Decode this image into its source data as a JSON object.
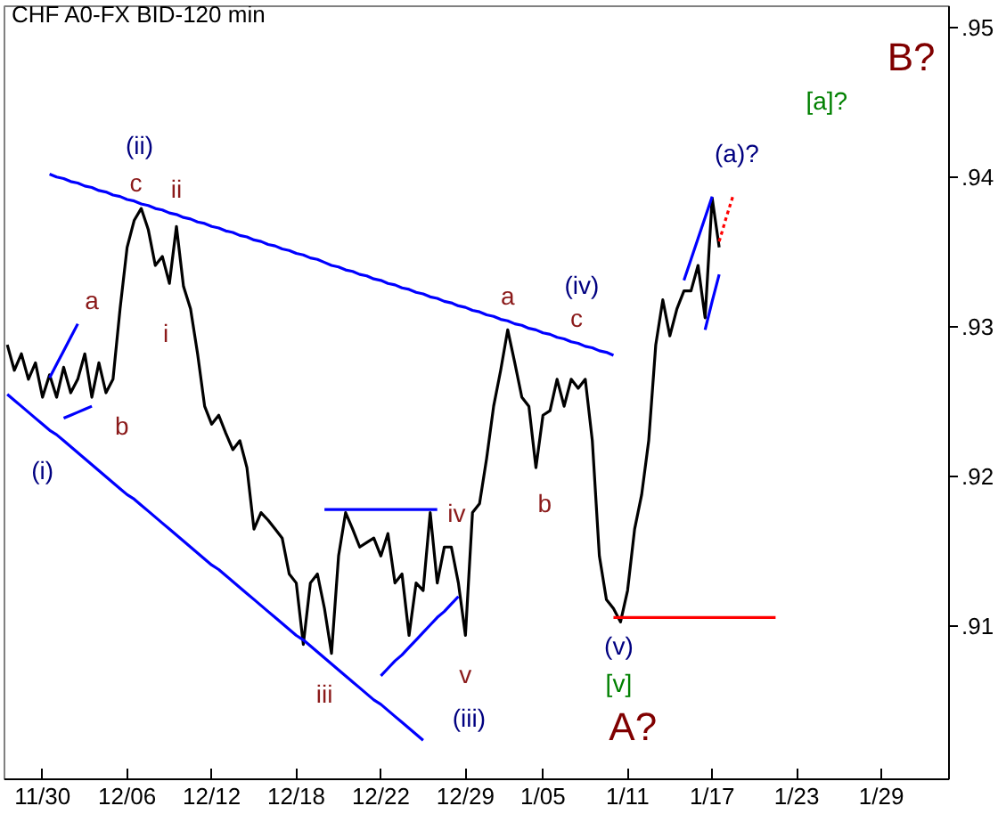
{
  "chart_data": {
    "type": "line",
    "title": "CHF A0-FX BID-120 min",
    "categories": [
      null,
      null,
      null,
      null,
      null,
      "11/30",
      null,
      null,
      null,
      null,
      null,
      null,
      null,
      null,
      null,
      null,
      null,
      "12/06",
      null,
      null,
      null,
      null,
      null,
      null,
      null,
      null,
      null,
      null,
      null,
      "12/12",
      null,
      null,
      null,
      null,
      null,
      null,
      null,
      null,
      null,
      null,
      null,
      "12/18",
      null,
      null,
      null,
      null,
      null,
      null,
      null,
      null,
      null,
      null,
      null,
      "12/22",
      null,
      null,
      null,
      null,
      null,
      null,
      null,
      null,
      null,
      null,
      null,
      "12/29",
      null,
      null,
      null,
      null,
      null,
      null,
      null,
      null,
      null,
      null,
      "1/05",
      null,
      null,
      null,
      null,
      null,
      null,
      null,
      null,
      null,
      null,
      null,
      "1/11",
      null,
      null,
      null,
      null,
      null,
      null,
      null,
      null,
      null,
      null,
      null,
      "1/17",
      null,
      null,
      null,
      null,
      null,
      null,
      null,
      null,
      null,
      null,
      null,
      "1/23",
      null,
      null,
      null,
      null,
      null,
      null,
      null,
      null,
      null,
      null,
      null,
      "1/29",
      null,
      null,
      null,
      null,
      null,
      null,
      null,
      null,
      null
    ],
    "ylim": [
      0.8998,
      0.9514
    ],
    "yticks": [
      {
        "value": 0.91,
        "label": ".91"
      },
      {
        "value": 0.92,
        "label": ".92"
      },
      {
        "value": 0.93,
        "label": ".93"
      },
      {
        "value": 0.94,
        "label": ".94"
      },
      {
        "value": 0.95,
        "label": ".95"
      }
    ],
    "grid": false,
    "marker": "none",
    "series": [
      {
        "color": "#000000",
        "line_style": "solid",
        "values": [
          0.9288,
          0.9271,
          0.9282,
          0.9265,
          0.9276,
          0.9253,
          0.9268,
          0.9253,
          0.9273,
          0.9256,
          0.9265,
          0.9282,
          0.9253,
          0.9276,
          0.9256,
          0.9265,
          0.9312,
          0.9353,
          0.9371,
          0.9379,
          0.9365,
          0.9341,
          0.9347,
          0.9329,
          0.9367,
          0.9327,
          0.9312,
          0.9282,
          0.9247,
          0.9235,
          0.9241,
          0.9229,
          0.9218,
          0.9224,
          0.9206,
          0.9165,
          0.9176,
          0.9171,
          0.9165,
          0.9159,
          0.9135,
          0.9129,
          0.9088,
          0.9129,
          0.9135,
          0.9112,
          0.9082,
          0.9147,
          0.9176,
          0.9165,
          0.9153,
          0.9156,
          0.9159,
          0.9147,
          0.9162,
          0.9129,
          0.9135,
          0.9094,
          0.9129,
          0.9124,
          0.9176,
          0.9129,
          0.9153,
          0.9153,
          0.9129,
          0.9094,
          0.9176,
          0.9182,
          0.9212,
          0.9247,
          0.9271,
          0.9298,
          0.9276,
          0.9253,
          0.9247,
          0.9206,
          0.9241,
          0.9244,
          0.9265,
          0.9247,
          0.9265,
          0.9259,
          0.9265,
          0.9224,
          0.9147,
          0.9118,
          0.9112,
          0.9103,
          0.9124,
          0.9165,
          0.9188,
          0.9224,
          0.9288,
          0.9318,
          0.9294,
          0.9312,
          0.9324,
          0.9324,
          0.9341,
          0.9306,
          0.9386,
          0.9353,
          null,
          null,
          null,
          null,
          null,
          null,
          null,
          null,
          null,
          null,
          null,
          null,
          null,
          null,
          null,
          null,
          null,
          null,
          null,
          null,
          null,
          null,
          null,
          null,
          null,
          null,
          null,
          null,
          null,
          null,
          null,
          null
        ]
      },
      {
        "color": "#0000ff",
        "line_style": "solid",
        "values": [
          null,
          null,
          null,
          null,
          null,
          null,
          0.9402,
          0.94,
          0.9399,
          0.9397,
          0.9396,
          0.9394,
          0.9393,
          0.9391,
          0.939,
          0.9388,
          0.9387,
          0.9385,
          0.9384,
          0.9382,
          0.9381,
          0.9379,
          0.9378,
          0.9376,
          0.9375,
          0.9373,
          0.9372,
          0.937,
          0.9369,
          0.9367,
          0.9366,
          0.9364,
          0.9363,
          0.9361,
          0.936,
          0.9358,
          0.9357,
          0.9355,
          0.9354,
          0.9352,
          0.9351,
          0.9349,
          0.9348,
          0.9346,
          0.9345,
          0.9343,
          0.9341,
          0.934,
          0.9338,
          0.9337,
          0.9335,
          0.9334,
          0.9332,
          0.9331,
          0.9329,
          0.9328,
          0.9326,
          0.9325,
          0.9323,
          0.9322,
          0.932,
          0.9319,
          0.9317,
          0.9316,
          0.9314,
          0.9313,
          0.9311,
          0.931,
          0.9308,
          0.9307,
          0.9305,
          0.9304,
          0.9302,
          0.9301,
          0.9299,
          0.9298,
          0.9296,
          0.9295,
          0.9293,
          0.9292,
          0.929,
          0.9289,
          0.9287,
          0.9286,
          0.9284,
          0.9283,
          0.9281,
          null,
          null,
          null,
          null,
          null,
          null,
          null,
          null,
          null,
          null,
          null,
          null,
          null,
          null,
          null,
          null,
          null,
          null,
          null,
          null,
          null,
          null,
          null,
          null,
          null,
          null,
          null,
          null,
          null,
          null,
          null,
          null,
          null,
          null,
          null,
          null,
          null,
          null,
          null,
          null,
          null,
          null,
          null,
          null,
          null,
          null,
          null
        ]
      },
      {
        "color": "#0000fe",
        "line_style": "solid",
        "values": [
          0.9255,
          0.9251,
          0.9247,
          0.9243,
          0.9239,
          0.9235,
          0.9231,
          0.9228,
          0.9224,
          0.922,
          0.9216,
          0.9212,
          0.9208,
          0.9204,
          0.92,
          0.9196,
          0.9192,
          0.9188,
          0.9185,
          0.9181,
          0.9177,
          0.9173,
          0.9169,
          0.9165,
          0.9161,
          0.9157,
          0.9153,
          0.9149,
          0.9145,
          0.9141,
          0.9138,
          0.9134,
          0.913,
          0.9126,
          0.9122,
          0.9118,
          0.9114,
          0.911,
          0.9106,
          0.9102,
          0.9098,
          0.9094,
          0.9091,
          0.9087,
          0.9083,
          0.9079,
          0.9075,
          0.9071,
          0.9067,
          0.9063,
          0.9059,
          0.9055,
          0.9051,
          0.9048,
          0.9044,
          0.904,
          0.9036,
          0.9032,
          0.9028,
          0.9024,
          null,
          null,
          null,
          null,
          null,
          null,
          null,
          null,
          null,
          null,
          null,
          null,
          null,
          null,
          null,
          null,
          null,
          null,
          null,
          null,
          null,
          null,
          null,
          null,
          null,
          null,
          null,
          null,
          null,
          null,
          null,
          null,
          null,
          null,
          null,
          null,
          null,
          null,
          null,
          null,
          null,
          null,
          null,
          null,
          null,
          null,
          null,
          null,
          null,
          null,
          null,
          null,
          null,
          null,
          null,
          null,
          null,
          null,
          null,
          null,
          null,
          null,
          null,
          null,
          null,
          null,
          null,
          null,
          null,
          null,
          null,
          null,
          null,
          null
        ]
      },
      {
        "color": "#0000fd",
        "line_style": "solid",
        "values": [
          null,
          null,
          null,
          null,
          null,
          null,
          0.9266,
          0.9275,
          0.9284,
          0.9293,
          0.9302,
          null,
          null,
          null,
          null,
          null,
          null,
          null,
          null,
          null,
          null,
          null,
          null,
          null,
          null,
          null,
          null,
          null,
          null,
          null,
          null,
          null,
          null,
          null,
          null,
          null,
          null,
          null,
          null,
          null,
          null,
          null,
          null,
          null,
          null,
          null,
          null,
          null,
          null,
          null,
          null,
          null,
          null,
          null,
          null,
          null,
          null,
          null,
          null,
          null,
          null,
          null,
          null,
          null,
          null,
          null,
          null,
          null,
          null,
          null,
          null,
          null,
          null,
          null,
          null,
          null,
          null,
          null,
          null,
          null,
          null,
          null,
          null,
          null,
          null,
          null,
          null,
          null,
          null,
          null,
          null,
          null,
          null,
          null,
          null,
          null,
          null,
          null,
          null,
          null,
          null,
          null,
          null,
          null,
          null,
          null,
          null,
          null,
          null,
          null,
          null,
          null,
          null,
          null,
          null,
          null,
          null,
          null,
          null,
          null,
          null,
          null,
          null,
          null,
          null,
          null,
          null,
          null,
          null,
          null,
          null,
          null,
          null,
          null
        ]
      },
      {
        "color": "#0000fc",
        "line_style": "solid",
        "values": [
          null,
          null,
          null,
          null,
          null,
          null,
          null,
          null,
          0.9239,
          0.9241,
          0.9243,
          0.9245,
          0.9247,
          null,
          null,
          null,
          null,
          null,
          null,
          null,
          null,
          null,
          null,
          null,
          null,
          null,
          null,
          null,
          null,
          null,
          null,
          null,
          null,
          null,
          null,
          null,
          null,
          null,
          null,
          null,
          null,
          null,
          null,
          null,
          null,
          null,
          null,
          null,
          null,
          null,
          null,
          null,
          null,
          null,
          null,
          null,
          null,
          null,
          null,
          null,
          null,
          null,
          null,
          null,
          null,
          null,
          null,
          null,
          null,
          null,
          null,
          null,
          null,
          null,
          null,
          null,
          null,
          null,
          null,
          null,
          null,
          null,
          null,
          null,
          null,
          null,
          null,
          null,
          null,
          null,
          null,
          null,
          null,
          null,
          null,
          null,
          null,
          null,
          null,
          null,
          null,
          null,
          null,
          null,
          null,
          null,
          null,
          null,
          null,
          null,
          null,
          null,
          null,
          null,
          null,
          null,
          null,
          null,
          null,
          null,
          null,
          null,
          null,
          null,
          null,
          null,
          null,
          null,
          null,
          null,
          null,
          null,
          null,
          null
        ]
      },
      {
        "color": "#0000ff",
        "line_style": "solid",
        "values": [
          null,
          null,
          null,
          null,
          null,
          null,
          null,
          null,
          null,
          null,
          null,
          null,
          null,
          null,
          null,
          null,
          null,
          null,
          null,
          null,
          null,
          null,
          null,
          null,
          null,
          null,
          null,
          null,
          null,
          null,
          null,
          null,
          null,
          null,
          null,
          null,
          null,
          null,
          null,
          null,
          null,
          null,
          null,
          null,
          null,
          0.9178,
          0.9178,
          0.9178,
          0.9178,
          0.9178,
          0.9178,
          0.9178,
          0.9178,
          0.9178,
          0.9178,
          0.9178,
          0.9178,
          0.9178,
          0.9178,
          0.9178,
          0.9178,
          0.9178,
          null,
          null,
          null,
          null,
          null,
          null,
          null,
          null,
          null,
          null,
          null,
          null,
          null,
          null,
          null,
          null,
          null,
          null,
          null,
          null,
          null,
          null,
          null,
          null,
          null,
          null,
          null,
          null,
          null,
          null,
          null,
          null,
          null,
          null,
          null,
          null,
          null,
          null,
          null,
          null,
          null,
          null,
          null,
          null,
          null,
          null,
          null,
          null,
          null,
          null,
          null,
          null,
          null,
          null,
          null,
          null,
          null,
          null,
          null,
          null,
          null,
          null,
          null,
          null,
          null,
          null,
          null,
          null,
          null,
          null,
          null,
          null
        ]
      },
      {
        "color": "#0000ff",
        "line_style": "solid",
        "values": [
          null,
          null,
          null,
          null,
          null,
          null,
          null,
          null,
          null,
          null,
          null,
          null,
          null,
          null,
          null,
          null,
          null,
          null,
          null,
          null,
          null,
          null,
          null,
          null,
          null,
          null,
          null,
          null,
          null,
          null,
          null,
          null,
          null,
          null,
          null,
          null,
          null,
          null,
          null,
          null,
          null,
          null,
          null,
          null,
          null,
          null,
          null,
          null,
          null,
          null,
          null,
          null,
          null,
          0.9067,
          0.9072,
          0.9077,
          0.9081,
          0.9086,
          0.9091,
          0.9096,
          0.9101,
          0.9106,
          0.911,
          0.9115,
          0.912,
          null,
          null,
          null,
          null,
          null,
          null,
          null,
          null,
          null,
          null,
          null,
          null,
          null,
          null,
          null,
          null,
          null,
          null,
          null,
          null,
          null,
          null,
          null,
          null,
          null,
          null,
          null,
          null,
          null,
          null,
          null,
          null,
          null,
          null,
          null,
          null,
          null,
          null,
          null,
          null,
          null,
          null,
          null,
          null,
          null,
          null,
          null,
          null,
          null,
          null,
          null,
          null,
          null,
          null,
          null,
          null,
          null,
          null,
          null,
          null,
          null,
          null,
          null,
          null,
          null,
          null,
          null,
          null,
          null
        ]
      },
      {
        "color": "#0000ff",
        "line_style": "solid",
        "values": [
          null,
          null,
          null,
          null,
          null,
          null,
          null,
          null,
          null,
          null,
          null,
          null,
          null,
          null,
          null,
          null,
          null,
          null,
          null,
          null,
          null,
          null,
          null,
          null,
          null,
          null,
          null,
          null,
          null,
          null,
          null,
          null,
          null,
          null,
          null,
          null,
          null,
          null,
          null,
          null,
          null,
          null,
          null,
          null,
          null,
          null,
          null,
          null,
          null,
          null,
          null,
          null,
          null,
          null,
          null,
          null,
          null,
          null,
          null,
          null,
          null,
          null,
          null,
          null,
          null,
          null,
          null,
          null,
          null,
          null,
          null,
          null,
          null,
          null,
          null,
          null,
          null,
          null,
          null,
          null,
          null,
          null,
          null,
          null,
          null,
          null,
          null,
          null,
          null,
          null,
          null,
          null,
          null,
          null,
          null,
          null,
          0.9331,
          0.9345,
          0.9359,
          0.9373,
          0.9387,
          null,
          null,
          null,
          null,
          null,
          null,
          null,
          null,
          null,
          null,
          null,
          null,
          null,
          null,
          null,
          null,
          null,
          null,
          null,
          null,
          null,
          null,
          null,
          null,
          null,
          null,
          null,
          null,
          null,
          null,
          null,
          null,
          null
        ]
      },
      {
        "color": "#0000ff",
        "line_style": "solid",
        "values": [
          null,
          null,
          null,
          null,
          null,
          null,
          null,
          null,
          null,
          null,
          null,
          null,
          null,
          null,
          null,
          null,
          null,
          null,
          null,
          null,
          null,
          null,
          null,
          null,
          null,
          null,
          null,
          null,
          null,
          null,
          null,
          null,
          null,
          null,
          null,
          null,
          null,
          null,
          null,
          null,
          null,
          null,
          null,
          null,
          null,
          null,
          null,
          null,
          null,
          null,
          null,
          null,
          null,
          null,
          null,
          null,
          null,
          null,
          null,
          null,
          null,
          null,
          null,
          null,
          null,
          null,
          null,
          null,
          null,
          null,
          null,
          null,
          null,
          null,
          null,
          null,
          null,
          null,
          null,
          null,
          null,
          null,
          null,
          null,
          null,
          null,
          null,
          null,
          null,
          null,
          null,
          null,
          null,
          null,
          null,
          null,
          null,
          null,
          null,
          0.9298,
          0.9317,
          0.9335,
          null,
          null,
          null,
          null,
          null,
          null,
          null,
          null,
          null,
          null,
          null,
          null,
          null,
          null,
          null,
          null,
          null,
          null,
          null,
          null,
          null,
          null,
          null,
          null,
          null,
          null,
          null,
          null,
          null,
          null,
          null,
          null
        ]
      },
      {
        "color": "#ff0000",
        "line_style": "dotted",
        "values": [
          null,
          null,
          null,
          null,
          null,
          null,
          null,
          null,
          null,
          null,
          null,
          null,
          null,
          null,
          null,
          null,
          null,
          null,
          null,
          null,
          null,
          null,
          null,
          null,
          null,
          null,
          null,
          null,
          null,
          null,
          null,
          null,
          null,
          null,
          null,
          null,
          null,
          null,
          null,
          null,
          null,
          null,
          null,
          null,
          null,
          null,
          null,
          null,
          null,
          null,
          null,
          null,
          null,
          null,
          null,
          null,
          null,
          null,
          null,
          null,
          null,
          null,
          null,
          null,
          null,
          null,
          null,
          null,
          null,
          null,
          null,
          null,
          null,
          null,
          null,
          null,
          null,
          null,
          null,
          null,
          null,
          null,
          null,
          null,
          null,
          null,
          null,
          null,
          null,
          null,
          null,
          null,
          null,
          null,
          null,
          null,
          null,
          null,
          null,
          null,
          null,
          0.9357,
          0.9373,
          0.9388,
          null,
          null,
          null,
          null,
          null,
          null,
          null,
          null,
          null,
          null,
          null,
          null,
          null,
          null,
          null,
          null,
          null,
          null,
          null,
          null,
          null,
          null,
          null,
          null,
          null,
          null,
          null,
          null,
          null,
          null
        ]
      },
      {
        "color": "#ff0000",
        "line_style": "solid",
        "values": [
          null,
          null,
          null,
          null,
          null,
          null,
          null,
          null,
          null,
          null,
          null,
          null,
          null,
          null,
          null,
          null,
          null,
          null,
          null,
          null,
          null,
          null,
          null,
          null,
          null,
          null,
          null,
          null,
          null,
          null,
          null,
          null,
          null,
          null,
          null,
          null,
          null,
          null,
          null,
          null,
          null,
          null,
          null,
          null,
          null,
          null,
          null,
          null,
          null,
          null,
          null,
          null,
          null,
          null,
          null,
          null,
          null,
          null,
          null,
          null,
          null,
          null,
          null,
          null,
          null,
          null,
          null,
          null,
          null,
          null,
          null,
          null,
          null,
          null,
          null,
          null,
          null,
          null,
          null,
          null,
          null,
          null,
          null,
          null,
          null,
          null,
          0.9106,
          0.9106,
          0.9106,
          0.9106,
          0.9106,
          0.9106,
          0.9106,
          0.9106,
          0.9106,
          0.9106,
          0.9106,
          0.9106,
          0.9106,
          0.9106,
          0.9106,
          0.9106,
          0.9106,
          0.9106,
          0.9106,
          0.9106,
          0.9106,
          0.9106,
          0.9106,
          0.9106,
          null,
          null,
          null,
          null,
          null,
          null,
          null,
          null,
          null,
          null,
          null,
          null,
          null,
          null,
          null,
          null,
          null,
          null,
          null,
          null,
          null,
          null,
          null,
          null
        ]
      }
    ],
    "annotations": [
      "(i)",
      "a",
      "b",
      "(ii)",
      "c",
      "ii",
      "i",
      "iii",
      "iv",
      "v",
      "(iii)",
      "a",
      "(iv)",
      "c",
      "b",
      "(v)",
      "[v]",
      "A?",
      "(a)?",
      "[a]?",
      "B?"
    ]
  }
}
